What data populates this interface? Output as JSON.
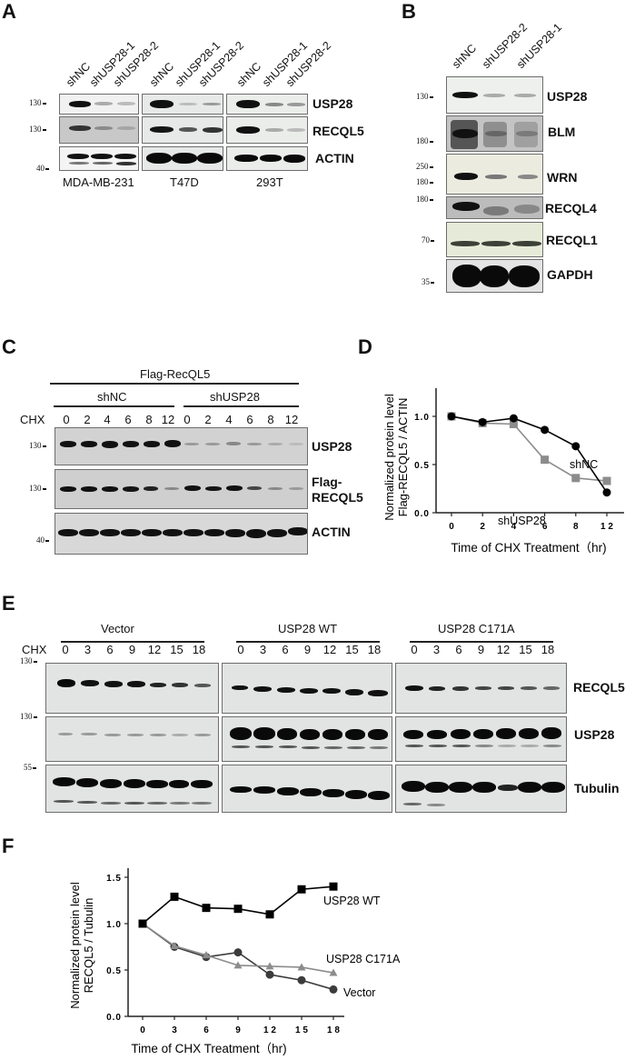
{
  "panels": {
    "A": {
      "letter": "A",
      "lanes": [
        "shNC",
        "shUSP28-1",
        "shUSP28-2"
      ],
      "cell_lines": [
        "MDA-MB-231",
        "T47D",
        "293T"
      ],
      "proteins": [
        "USP28",
        "RECQL5",
        "ACTIN"
      ],
      "mw_markers": [
        "130",
        "130",
        "40"
      ]
    },
    "B": {
      "letter": "B",
      "lanes": [
        "shNC",
        "shUSP28-2",
        "shUSP28-1"
      ],
      "proteins": [
        "USP28",
        "BLM",
        "WRN",
        "RECQL4",
        "RECQL1",
        "GAPDH"
      ],
      "mw_markers": [
        "130",
        "180",
        "250",
        "180",
        "180",
        "70",
        "35"
      ]
    },
    "C": {
      "letter": "C",
      "construct": "Flag-RecQL5",
      "groups": [
        "shNC",
        "shUSP28"
      ],
      "treatment_label": "CHX",
      "timepoints": [
        "0",
        "2",
        "4",
        "6",
        "8",
        "12",
        "0",
        "2",
        "4",
        "6",
        "8",
        "12"
      ],
      "proteins": [
        "USP28",
        "Flag-",
        "RECQL5",
        "ACTIN"
      ],
      "mw_markers": [
        "130",
        "130",
        "40"
      ]
    },
    "D": {
      "letter": "D"
    },
    "E": {
      "letter": "E",
      "groups": [
        "Vector",
        "USP28 WT",
        "USP28 C171A"
      ],
      "treatment_label": "CHX",
      "timepoints": [
        "0",
        "3",
        "6",
        "9",
        "12",
        "15",
        "18"
      ],
      "proteins": [
        "RECQL5",
        "USP28",
        "Tubulin"
      ],
      "mw_markers": [
        "130",
        "130",
        "55"
      ]
    },
    "F": {
      "letter": "F"
    }
  },
  "chart_data": [
    {
      "panel": "D",
      "type": "line",
      "title": "",
      "xlabel": "Time of CHX Treatment（hr)",
      "ylabel": "Normalized protein level\nFlag-RECQL5 / ACTIN",
      "ylabel_line1": "Normalized protein level",
      "ylabel_line2": "Flag-RECQL5 / ACTIN",
      "x": [
        0,
        2,
        4,
        6,
        8,
        12
      ],
      "x_tick_labels": [
        "0",
        "2",
        "4",
        "6",
        "8",
        "1 2"
      ],
      "y_tick_labels": [
        "0.0",
        "0.5",
        "1.0"
      ],
      "ylim": [
        0,
        1.3
      ],
      "grid": false,
      "series": [
        {
          "name": "shNC",
          "marker": "circle",
          "color": "#000000",
          "values": [
            1.0,
            0.94,
            0.98,
            0.86,
            0.69,
            0.21
          ]
        },
        {
          "name": "shUSP28",
          "marker": "square",
          "color": "#8c8c8c",
          "values": [
            1.0,
            0.93,
            0.92,
            0.55,
            0.36,
            0.33
          ]
        }
      ],
      "annotations": [
        "shNC",
        "shUSP28"
      ]
    },
    {
      "panel": "F",
      "type": "line",
      "title": "",
      "xlabel": "Time of CHX Treatment（hr)",
      "ylabel": "Normalized protein level\nRECQL5 / Tubulin",
      "ylabel_line1": "Normalized protein level",
      "ylabel_line2": "RECQL5 / Tubulin",
      "x": [
        0,
        3,
        6,
        9,
        12,
        15,
        18
      ],
      "x_tick_labels": [
        "0",
        "3",
        "6",
        "9",
        "1 2",
        "1 5",
        "1 8"
      ],
      "y_tick_labels": [
        "0.0",
        "0.5",
        "1.0",
        "1.5"
      ],
      "ylim": [
        0,
        1.6
      ],
      "grid": false,
      "series": [
        {
          "name": "USP28 WT",
          "marker": "square",
          "color": "#000000",
          "values": [
            1.0,
            1.29,
            1.17,
            1.16,
            1.1,
            1.37,
            1.4
          ]
        },
        {
          "name": "USP28 C171A",
          "marker": "triangle",
          "color": "#8c8c8c",
          "values": [
            1.0,
            0.76,
            0.66,
            0.55,
            0.54,
            0.53,
            0.47
          ]
        },
        {
          "name": "Vector",
          "marker": "circle",
          "color": "#3c3c3c",
          "values": [
            1.0,
            0.75,
            0.64,
            0.69,
            0.45,
            0.39,
            0.29
          ]
        }
      ],
      "annotations": [
        "USP28 WT",
        "USP28 C171A",
        "Vector"
      ]
    }
  ]
}
